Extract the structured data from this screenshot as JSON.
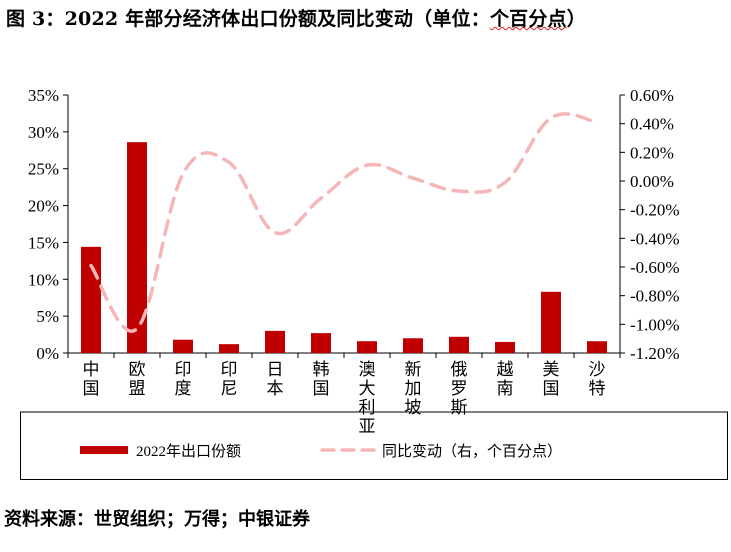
{
  "title": {
    "text": "图 3：2022 年部分经济体出口份额及同比变动（单位：",
    "squiggle": "个百分点",
    "end": "）"
  },
  "footer": "资料来源：世贸组织；万得；中银证券",
  "colors": {
    "bar": "#c00000",
    "line": "#f4b6b6",
    "axis": "#000000"
  },
  "chart_data": {
    "type": "bar",
    "categories": [
      "中国",
      "欧盟",
      "印度",
      "印尼",
      "日本",
      "韩国",
      "澳大利亚",
      "新加坡",
      "俄罗斯",
      "越南",
      "美国",
      "沙特"
    ],
    "series": [
      {
        "name": "2022年出口份额",
        "type": "bar",
        "axis": "left",
        "values": [
          14.4,
          28.6,
          1.8,
          1.2,
          3.0,
          2.7,
          1.6,
          2.0,
          2.2,
          1.5,
          8.3,
          1.6
        ]
      },
      {
        "name": "同比变动（右，个百分点）",
        "type": "line",
        "axis": "right",
        "values": [
          -0.59,
          -1.03,
          0.05,
          0.13,
          -0.36,
          -0.12,
          0.11,
          0.02,
          -0.07,
          -0.01,
          0.44,
          0.41
        ]
      }
    ],
    "y_left": {
      "min": 0,
      "max": 35,
      "step": 5,
      "tick_labels": [
        "0%",
        "5%",
        "10%",
        "15%",
        "20%",
        "25%",
        "30%",
        "35%"
      ]
    },
    "y_right": {
      "min": -1.2,
      "max": 0.6,
      "step": 0.2,
      "tick_labels": [
        "-1.20%",
        "-1.00%",
        "-0.80%",
        "-0.60%",
        "-0.40%",
        "-0.20%",
        "0.00%",
        "0.20%",
        "0.40%",
        "0.60%"
      ]
    },
    "legend_placement": "bottom",
    "grid": false
  }
}
